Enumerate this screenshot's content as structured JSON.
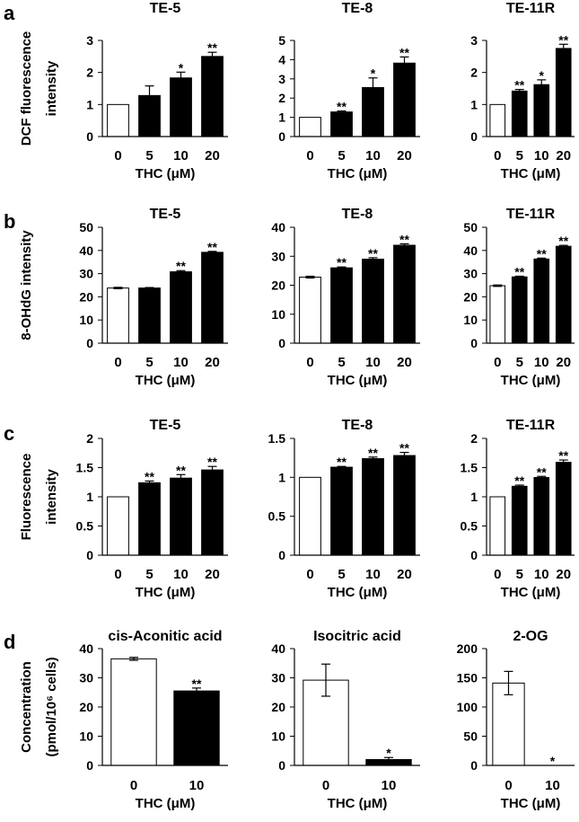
{
  "panels": [
    {
      "label": "a",
      "ylabel": [
        "DCF fluorescence",
        "intensity"
      ]
    },
    {
      "label": "b",
      "ylabel": [
        "8-OHdG intensity"
      ]
    },
    {
      "label": "c",
      "ylabel": [
        "Fluorescence",
        "intensity"
      ]
    },
    {
      "label": "d",
      "ylabel": [
        "Concentration",
        "(pmol/10⁶ cells)"
      ]
    }
  ],
  "colors": {
    "control": "#ffffff",
    "treated": "#000000",
    "axis": "#000000"
  },
  "chart_data": [
    {
      "type": "bar",
      "panel": "a",
      "title": "TE-5",
      "xlabel": "THC (μM)",
      "categories": [
        "0",
        "5",
        "10",
        "20"
      ],
      "values": [
        1.0,
        1.28,
        1.83,
        2.5
      ],
      "errors": [
        0,
        0.3,
        0.18,
        0.13
      ],
      "significance": [
        "",
        "",
        "*",
        "**"
      ],
      "ylim": [
        0,
        3
      ],
      "yticks": [
        "0",
        "1",
        "2",
        "3"
      ]
    },
    {
      "type": "bar",
      "panel": "a",
      "title": "TE-8",
      "xlabel": "THC (μM)",
      "categories": [
        "0",
        "5",
        "10",
        "20"
      ],
      "values": [
        1.0,
        1.28,
        2.55,
        3.82
      ],
      "errors": [
        0,
        0.05,
        0.5,
        0.32
      ],
      "significance": [
        "",
        "**",
        "*",
        "**"
      ],
      "ylim": [
        0,
        5
      ],
      "yticks": [
        "0",
        "1",
        "2",
        "3",
        "4",
        "5"
      ]
    },
    {
      "type": "bar",
      "panel": "a",
      "title": "TE-11R",
      "xlabel": "THC (μM)",
      "categories": [
        "0",
        "5",
        "10",
        "20"
      ],
      "values": [
        1.0,
        1.42,
        1.62,
        2.75
      ],
      "errors": [
        0,
        0.05,
        0.15,
        0.13
      ],
      "significance": [
        "",
        "**",
        "*",
        "**"
      ],
      "ylim": [
        0,
        3
      ],
      "yticks": [
        "0",
        "1",
        "2",
        "3"
      ]
    },
    {
      "type": "bar",
      "panel": "b",
      "title": "TE-5",
      "xlabel": "THC (μM)",
      "categories": [
        "0",
        "5",
        "10",
        "20"
      ],
      "values": [
        23.8,
        23.8,
        30.8,
        39.2
      ],
      "errors": [
        0.3,
        0.2,
        0.5,
        0.4
      ],
      "significance": [
        "",
        "",
        "**",
        "**"
      ],
      "ylim": [
        0,
        50
      ],
      "yticks": [
        "0",
        "10",
        "20",
        "30",
        "40",
        "50"
      ]
    },
    {
      "type": "bar",
      "panel": "b",
      "title": "TE-8",
      "xlabel": "THC (μM)",
      "categories": [
        "0",
        "5",
        "10",
        "20"
      ],
      "values": [
        22.8,
        26.0,
        29.0,
        33.8
      ],
      "errors": [
        0.3,
        0.3,
        0.5,
        0.5
      ],
      "significance": [
        "",
        "**",
        "**",
        "**"
      ],
      "ylim": [
        0,
        40
      ],
      "yticks": [
        "0",
        "10",
        "20",
        "30",
        "40"
      ]
    },
    {
      "type": "bar",
      "panel": "b",
      "title": "TE-11R",
      "xlabel": "THC (μM)",
      "categories": [
        "0",
        "5",
        "10",
        "20"
      ],
      "values": [
        24.8,
        28.6,
        36.3,
        41.8
      ],
      "errors": [
        0.3,
        0.3,
        0.4,
        0.4
      ],
      "significance": [
        "",
        "**",
        "**",
        "**"
      ],
      "ylim": [
        0,
        50
      ],
      "yticks": [
        "0",
        "10",
        "20",
        "30",
        "40",
        "50"
      ]
    },
    {
      "type": "bar",
      "panel": "c",
      "title": "TE-5",
      "xlabel": "THC (μM)",
      "categories": [
        "0",
        "5",
        "10",
        "20"
      ],
      "values": [
        1.0,
        1.24,
        1.32,
        1.46
      ],
      "errors": [
        0,
        0.03,
        0.06,
        0.06
      ],
      "significance": [
        "",
        "**",
        "**",
        "**"
      ],
      "ylim": [
        0,
        2
      ],
      "yticks": [
        "0",
        "0.5",
        "1",
        "1.5",
        "2"
      ]
    },
    {
      "type": "bar",
      "panel": "c",
      "title": "TE-8",
      "xlabel": "THC (μM)",
      "categories": [
        "0",
        "5",
        "10",
        "20"
      ],
      "values": [
        1.0,
        1.13,
        1.24,
        1.28
      ],
      "errors": [
        0,
        0.01,
        0.02,
        0.04
      ],
      "significance": [
        "",
        "**",
        "**",
        "**"
      ],
      "ylim": [
        0,
        1.5
      ],
      "yticks": [
        "0",
        "0.5",
        "1",
        "1.5"
      ]
    },
    {
      "type": "bar",
      "panel": "c",
      "title": "TE-11R",
      "xlabel": "THC (μM)",
      "categories": [
        "0",
        "5",
        "10",
        "20"
      ],
      "values": [
        1.0,
        1.18,
        1.33,
        1.59
      ],
      "errors": [
        0,
        0.02,
        0.02,
        0.04
      ],
      "significance": [
        "",
        "**",
        "**",
        "**"
      ],
      "ylim": [
        0,
        2
      ],
      "yticks": [
        "0",
        "0.5",
        "1",
        "1.5",
        "2"
      ]
    },
    {
      "type": "bar",
      "panel": "d",
      "title": "cis-Aconitic acid",
      "xlabel": "THC (μM)",
      "categories": [
        "0",
        "10"
      ],
      "values": [
        36.5,
        25.5
      ],
      "errors": [
        0.5,
        1.0
      ],
      "significance": [
        "",
        "**"
      ],
      "ylim": [
        0,
        40
      ],
      "yticks": [
        "0",
        "10",
        "20",
        "30",
        "40"
      ]
    },
    {
      "type": "bar",
      "panel": "d",
      "title": "Isocitric acid",
      "xlabel": "THC (μM)",
      "categories": [
        "0",
        "10"
      ],
      "values": [
        29.2,
        2.0
      ],
      "errors": [
        5.5,
        0.7
      ],
      "significance": [
        "",
        "*"
      ],
      "ylim": [
        0,
        40
      ],
      "yticks": [
        "0",
        "10",
        "20",
        "30",
        "40"
      ]
    },
    {
      "type": "bar",
      "panel": "d",
      "title": "2-OG",
      "xlabel": "THC (μM)",
      "categories": [
        "0",
        "10"
      ],
      "values": [
        141,
        0
      ],
      "errors": [
        20,
        0
      ],
      "significance": [
        "",
        "*"
      ],
      "ylim": [
        0,
        200
      ],
      "yticks": [
        "0",
        "50",
        "100",
        "150",
        "200"
      ]
    }
  ]
}
